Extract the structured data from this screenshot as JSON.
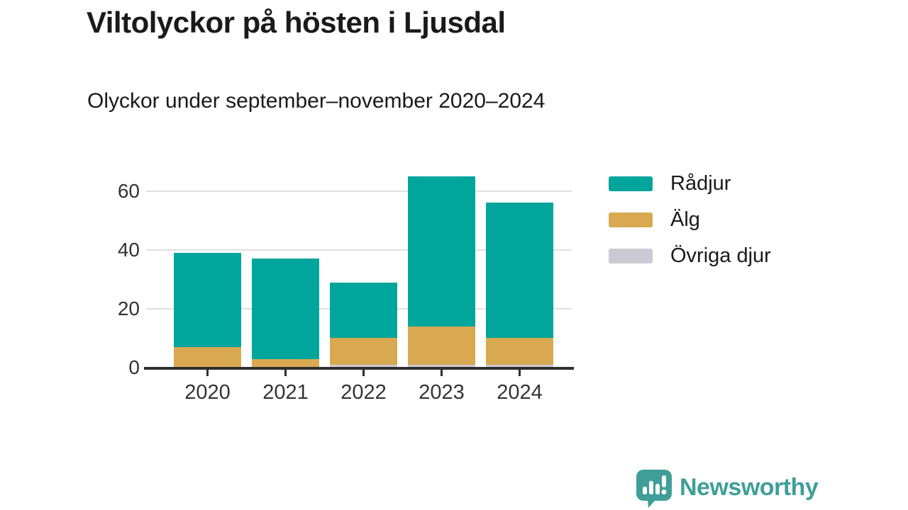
{
  "title": "Viltolyckor på hösten i Ljusdal",
  "subtitle": "Olyckor under september–november 2020–2024",
  "chart_data": {
    "type": "bar",
    "stacked": true,
    "title": "Viltolyckor på hösten i Ljusdal",
    "subtitle": "Olyckor under september–november 2020–2024",
    "categories": [
      "2020",
      "2021",
      "2022",
      "2023",
      "2024"
    ],
    "series": [
      {
        "name": "Rådjur",
        "color": "#00a59b",
        "values": [
          32,
          34,
          19,
          51,
          46
        ]
      },
      {
        "name": "Älg",
        "color": "#d9a952",
        "values": [
          7,
          3,
          9,
          13,
          9
        ]
      },
      {
        "name": "Övriga djur",
        "color": "#cbcad4",
        "values": [
          0,
          0,
          1,
          1,
          1
        ]
      }
    ],
    "totals": [
      39,
      37,
      29,
      65,
      56
    ],
    "xlabel": "",
    "ylabel": "",
    "yticks": [
      0,
      20,
      40,
      60
    ],
    "ylim": [
      0,
      67
    ],
    "grid": true,
    "legend_position": "right"
  },
  "colors": {
    "radjur": "#00a59b",
    "alg": "#d9a952",
    "ovriga": "#cbcad4",
    "text": "#1a1a1a",
    "axis": "#2e2e2e",
    "tick_label": "#333333",
    "gridline": "#e2e0e0",
    "brand": "#3f9e98"
  },
  "footer": {
    "brand": "Newsworthy",
    "logo_icon": "newsworthy-speech-bubble-barchart-icon"
  }
}
